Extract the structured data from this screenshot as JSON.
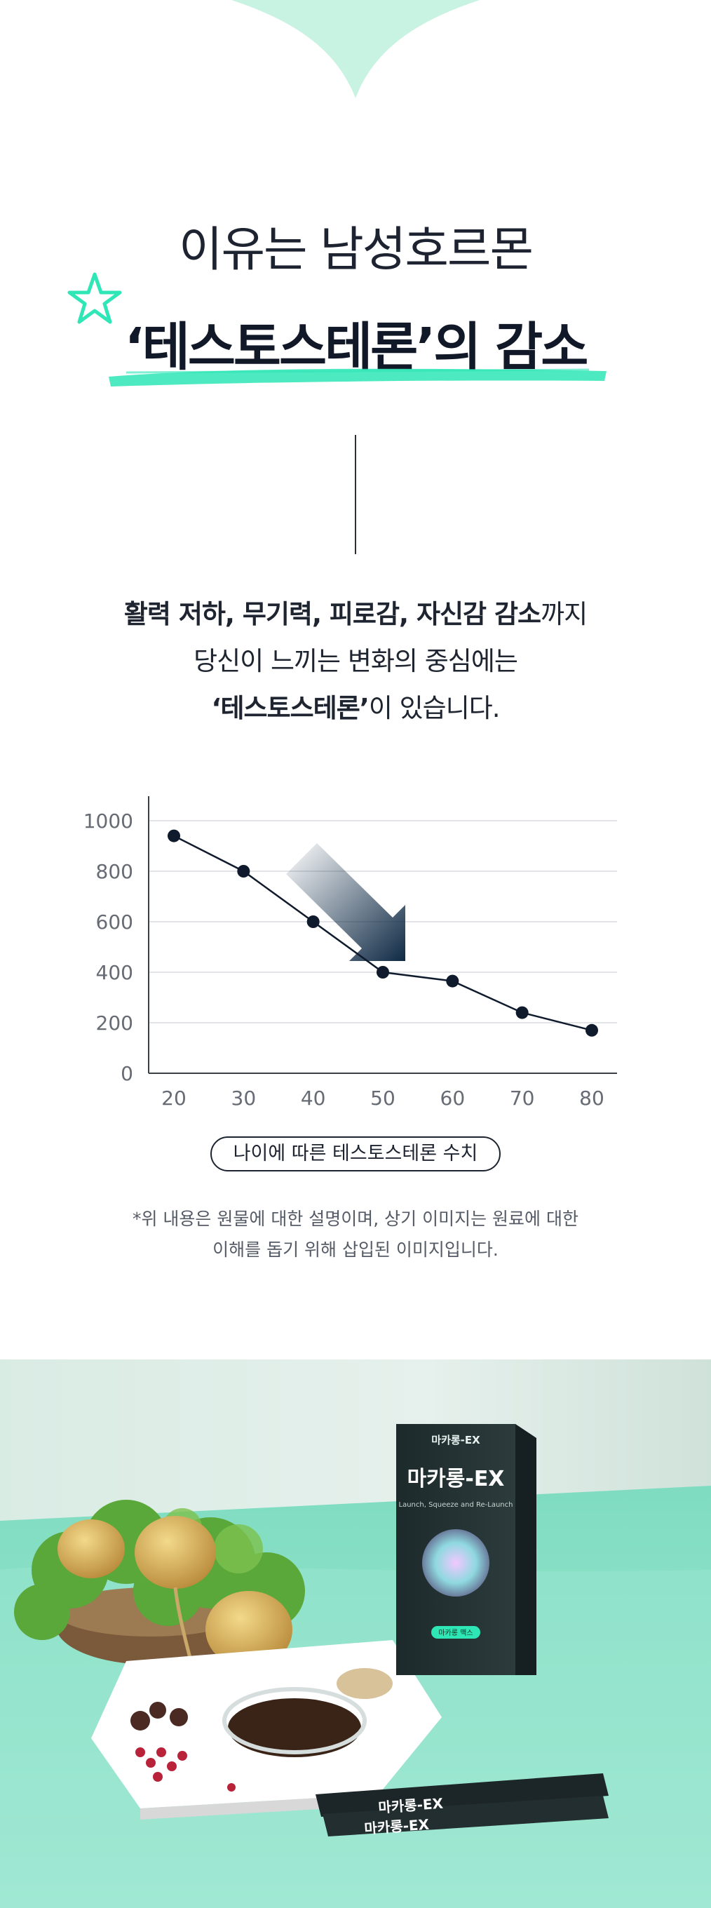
{
  "heading": {
    "line1": "이유는 남성호르몬",
    "line2_quote": "‘테스토스테론’",
    "line2_suffix": "의 감소"
  },
  "body": {
    "line1_bold": "활력 저하, 무기력, 피로감, 자신감 감소",
    "line1_rest": "까지",
    "line2": "당신이 느끼는 변화의 중심에는",
    "line3_bold": "‘테스토스테론’",
    "line3_rest": "이 있습니다."
  },
  "chart_data": {
    "type": "line",
    "x": [
      20,
      30,
      40,
      50,
      60,
      70,
      80
    ],
    "y": [
      940,
      800,
      600,
      400,
      365,
      240,
      170
    ],
    "xticks": [
      "20",
      "30",
      "40",
      "50",
      "60",
      "70",
      "80"
    ],
    "yticks": [
      "0",
      "200",
      "400",
      "600",
      "800",
      "1000"
    ],
    "ylim": [
      0,
      1000
    ],
    "xlim": [
      20,
      80
    ],
    "grid": true,
    "line_color": "#0f1b2d",
    "arrow_color": "#0f2a45"
  },
  "caption": "나이에 따른 테스토스테론 수치",
  "note": {
    "line1": "*위 내용은 원물에 대한 설명이며, 상기 이미지는 원료에 대한",
    "line2": "이해를 돕기 위해 삽입된 이미지입니다."
  },
  "product": {
    "box_brand": "마카롱-EX",
    "box_tagline": "Launch, Squeeze and Re-Launch",
    "box_badge": "마카롱 맥스",
    "stick_label": "마카롱-EX"
  },
  "colors": {
    "mint": "#c8f3e2",
    "accent": "#2ee6b6",
    "navy": "#0f1b2d",
    "table_bg": "#8fe3cb"
  }
}
